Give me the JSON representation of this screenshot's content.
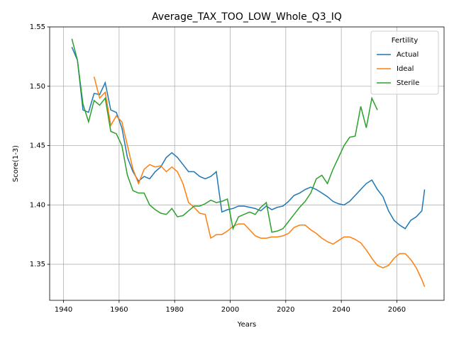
{
  "chart_data": {
    "type": "line",
    "title": "Average_TAX_TOO_LOW_Whole_Q3_IQ",
    "x_label": "Years",
    "y_label": "Score(1-3)",
    "legend_title": "Fertility",
    "legend": "upper right",
    "grid": true,
    "xlim": [
      1935,
      2077
    ],
    "ylim": [
      1.3196,
      1.55
    ],
    "xticks": [
      1940,
      1960,
      1980,
      2000,
      2020,
      2040,
      2060
    ],
    "yticks": [
      1.35,
      {
        "value": 1.4,
        "label": "1.40"
      },
      1.45,
      {
        "value": 1.5,
        "label": "1.50"
      },
      1.55
    ],
    "x": [
      1943,
      1945,
      1947,
      1949,
      1951,
      1953,
      1955,
      1957,
      1959,
      1961,
      1963,
      1965,
      1967,
      1969,
      1971,
      1973,
      1975,
      1977,
      1979,
      1981,
      1983,
      1985,
      1987,
      1989,
      1991,
      1993,
      1995,
      1997,
      1999,
      2001,
      2003,
      2005,
      2007,
      2009,
      2011,
      2013,
      2015,
      2017,
      2019,
      2021,
      2023,
      2025,
      2027,
      2029,
      2031,
      2033,
      2035,
      2037,
      2039,
      2041,
      2043,
      2045,
      2047,
      2049,
      2051,
      2053,
      2055,
      2057,
      2059,
      2061,
      2063,
      2065,
      2067,
      2069,
      2070
    ],
    "series": [
      {
        "name": "Actual",
        "color": "#1f77b4",
        "values": [
          1.533,
          1.522,
          1.48,
          1.478,
          1.494,
          1.493,
          1.503,
          1.48,
          1.478,
          1.465,
          1.44,
          1.428,
          1.42,
          1.424,
          1.422,
          1.428,
          1.432,
          1.44,
          1.444,
          1.44,
          1.434,
          1.428,
          1.428,
          1.424,
          1.422,
          1.424,
          1.428,
          1.394,
          1.396,
          1.397,
          1.399,
          1.399,
          1.398,
          1.397,
          1.395,
          1.399,
          1.396,
          1.398,
          1.399,
          1.403,
          1.408,
          1.41,
          1.413,
          1.415,
          1.413,
          1.41,
          1.407,
          1.403,
          1.401,
          1.4,
          1.403,
          1.408,
          1.413,
          1.418,
          1.421,
          1.413,
          1.407,
          1.395,
          1.387,
          1.383,
          1.38,
          1.387,
          1.39,
          1.395,
          1.413
        ]
      },
      {
        "name": "Ideal",
        "color": "#ff7f0e",
        "values": [
          null,
          null,
          null,
          null,
          1.508,
          1.49,
          1.495,
          1.467,
          1.475,
          1.47,
          1.45,
          1.43,
          1.418,
          1.43,
          1.434,
          1.432,
          1.433,
          1.428,
          1.432,
          1.428,
          1.418,
          1.402,
          1.398,
          1.393,
          1.392,
          1.372,
          1.375,
          1.375,
          1.378,
          1.382,
          1.384,
          1.384,
          1.379,
          1.374,
          1.372,
          1.372,
          1.373,
          1.373,
          1.374,
          1.376,
          1.381,
          1.383,
          1.383,
          1.379,
          1.376,
          1.372,
          1.369,
          1.367,
          1.37,
          1.373,
          1.373,
          1.371,
          1.368,
          1.362,
          1.355,
          1.349,
          1.347,
          1.349,
          1.355,
          1.359,
          1.359,
          1.354,
          1.347,
          1.337,
          1.331
        ]
      },
      {
        "name": "Sterile",
        "color": "#2ca02c",
        "values": [
          1.54,
          1.522,
          1.485,
          1.47,
          1.488,
          1.484,
          1.49,
          1.462,
          1.46,
          1.45,
          1.425,
          1.412,
          1.41,
          1.41,
          1.4,
          1.396,
          1.393,
          1.392,
          1.397,
          1.39,
          1.391,
          1.395,
          1.399,
          1.399,
          1.401,
          1.404,
          1.402,
          1.403,
          1.405,
          1.38,
          1.39,
          1.392,
          1.394,
          1.392,
          1.398,
          1.402,
          1.377,
          1.378,
          1.38,
          1.386,
          1.392,
          1.398,
          1.403,
          1.41,
          1.422,
          1.425,
          1.418,
          1.43,
          1.44,
          1.45,
          1.457,
          1.458,
          1.483,
          1.465,
          1.49,
          1.48,
          null,
          null,
          null,
          null,
          null,
          null,
          null,
          null,
          null
        ]
      }
    ]
  }
}
